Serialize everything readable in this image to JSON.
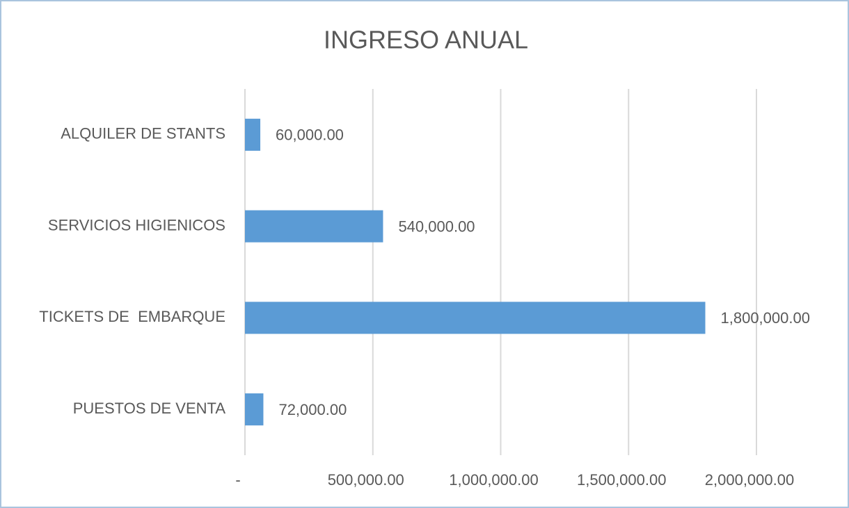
{
  "chart_data": {
    "type": "bar",
    "orientation": "horizontal",
    "title": "INGRESO ANUAL",
    "categories": [
      "ALQUILER DE STANTS",
      "SERVICIOS HIGIENICOS",
      "TICKETS DE  EMBARQUE",
      "PUESTOS DE VENTA"
    ],
    "values": [
      60000,
      540000,
      1800000,
      72000
    ],
    "value_labels": [
      "60,000.00",
      "540,000.00",
      "1,800,000.00",
      "72,000.00"
    ],
    "color": "#5b9bd5",
    "xlim": [
      0,
      2000000
    ],
    "xticks": [
      {
        "value": 0,
        "label": "-"
      },
      {
        "value": 500000,
        "label": "500,000.00"
      },
      {
        "value": 1000000,
        "label": "1,000,000.00"
      },
      {
        "value": 1500000,
        "label": "1,500,000.00"
      },
      {
        "value": 2000000,
        "label": "2,000,000.00"
      }
    ],
    "grid": true
  }
}
